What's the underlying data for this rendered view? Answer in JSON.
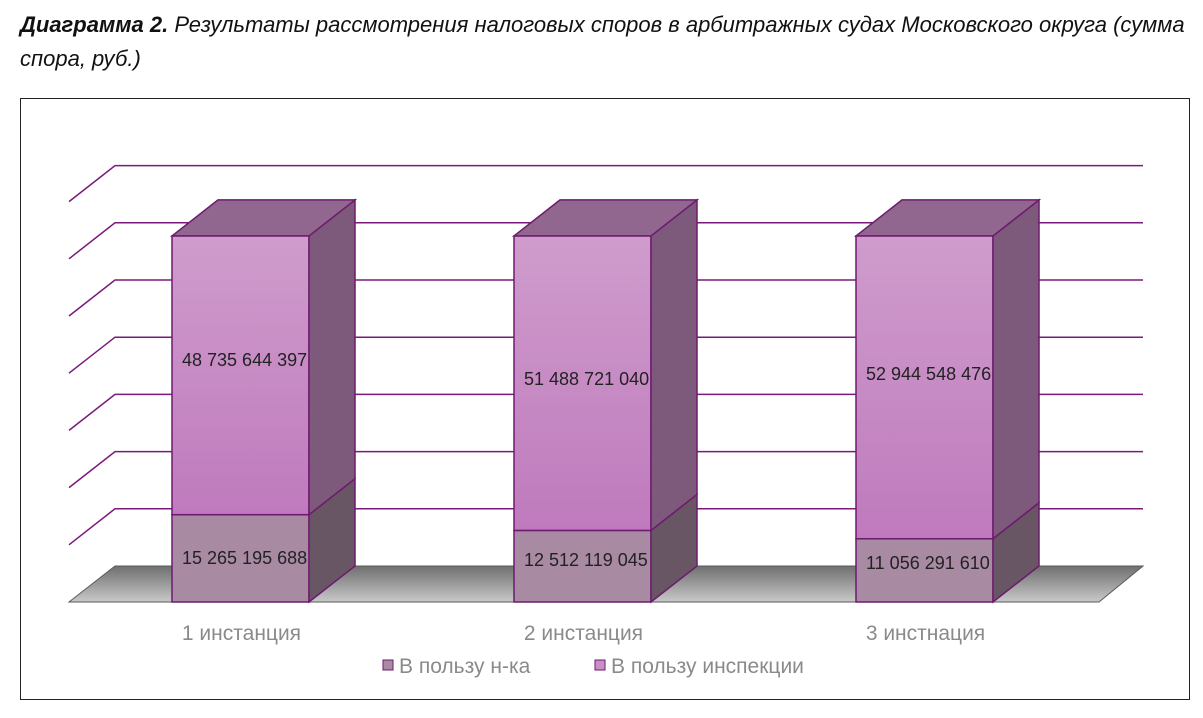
{
  "caption": {
    "bold": "Диаграмма 2.",
    "text": " Результаты рассмотрения налоговых споров в арбитражных судах Московского округа (сумма спора, руб.)"
  },
  "chart_data": {
    "type": "bar",
    "stacked": true,
    "style": "3d-column",
    "categories": [
      "1 инстанция",
      "2 инстанция",
      "3 инстнация"
    ],
    "series": [
      {
        "name": "В пользу н-ка",
        "values": [
          15265195688,
          12512119045,
          11056291610
        ],
        "labels": [
          "15 265 195 688",
          "12 512 119 045",
          "11 056 291 610"
        ],
        "color": "#a98aa3"
      },
      {
        "name": "В пользу инспекции",
        "values": [
          48735644397,
          51488721040,
          52944548476
        ],
        "labels": [
          "48 735 644 397",
          "51 488 721 040",
          "52 944 548 476"
        ],
        "color": "#c98fc6"
      }
    ],
    "ylim": [
      0,
      70000000000
    ],
    "grid": true,
    "legend": "bottom",
    "gridline_color": "#7a1a7a"
  }
}
